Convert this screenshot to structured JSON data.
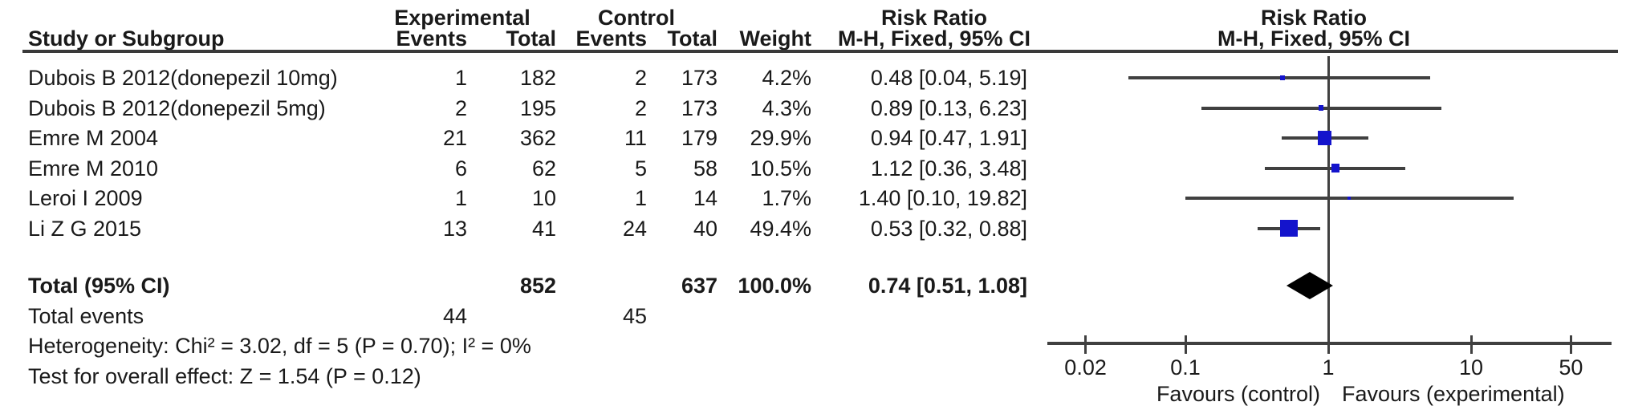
{
  "header": {
    "group1": "Experimental",
    "group2": "Control",
    "study": "Study or Subgroup",
    "events1": "Events",
    "total1": "Total",
    "events2": "Events",
    "total2": "Total",
    "weight": "Weight",
    "rr1": "Risk Ratio",
    "method1": "M-H, Fixed, 95% CI",
    "rr2": "Risk Ratio",
    "method2": "M-H, Fixed, 95% CI"
  },
  "colors": {
    "square": "#1414cc",
    "diamond": "#000000",
    "line": "#404040",
    "rule": "#3a3a3a",
    "text": "#1a1a1a"
  },
  "chart_data": {
    "type": "forest",
    "effect_measure": "Risk Ratio",
    "method": "M-H, Fixed, 95% CI",
    "scale": "log10",
    "x_ticks": [
      0.02,
      0.1,
      1,
      10,
      50
    ],
    "x_tick_labels": [
      "0.02",
      "0.1",
      "1",
      "10",
      "50"
    ],
    "x_range": [
      0.011,
      95
    ],
    "null_line": 1,
    "favours_left": "Favours (control)",
    "favours_right": "Favours (experimental)",
    "studies": [
      {
        "label": "Dubois B 2012(donepezil 10mg)",
        "exp_events": "1",
        "exp_total": "182",
        "ctl_events": "2",
        "ctl_total": "173",
        "weight": "4.2%",
        "rr": 0.48,
        "ci_low": 0.04,
        "ci_high": 5.19,
        "ci_text": "0.48 [0.04, 5.19]"
      },
      {
        "label": "Dubois B 2012(donepezil 5mg)",
        "exp_events": "2",
        "exp_total": "195",
        "ctl_events": "2",
        "ctl_total": "173",
        "weight": "4.3%",
        "rr": 0.89,
        "ci_low": 0.13,
        "ci_high": 6.23,
        "ci_text": "0.89 [0.13, 6.23]"
      },
      {
        "label": "Emre M 2004",
        "exp_events": "21",
        "exp_total": "362",
        "ctl_events": "11",
        "ctl_total": "179",
        "weight": "29.9%",
        "rr": 0.94,
        "ci_low": 0.47,
        "ci_high": 1.91,
        "ci_text": "0.94 [0.47, 1.91]"
      },
      {
        "label": "Emre M 2010",
        "exp_events": "6",
        "exp_total": "62",
        "ctl_events": "5",
        "ctl_total": "58",
        "weight": "10.5%",
        "rr": 1.12,
        "ci_low": 0.36,
        "ci_high": 3.48,
        "ci_text": "1.12 [0.36, 3.48]"
      },
      {
        "label": "Leroi I 2009",
        "exp_events": "1",
        "exp_total": "10",
        "ctl_events": "1",
        "ctl_total": "14",
        "weight": "1.7%",
        "rr": 1.4,
        "ci_low": 0.1,
        "ci_high": 19.82,
        "ci_text": "1.40 [0.10, 19.82]"
      },
      {
        "label": "Li Z G 2015",
        "exp_events": "13",
        "exp_total": "41",
        "ctl_events": "24",
        "ctl_total": "40",
        "weight": "49.4%",
        "rr": 0.53,
        "ci_low": 0.32,
        "ci_high": 0.88,
        "ci_text": "0.53 [0.32, 0.88]"
      }
    ],
    "total": {
      "label": "Total (95% CI)",
      "exp_total": "852",
      "ctl_total": "637",
      "weight": "100.0%",
      "rr": 0.74,
      "ci_low": 0.51,
      "ci_high": 1.08,
      "ci_text": "0.74 [0.51, 1.08]"
    },
    "total_events": {
      "label": "Total events",
      "experimental": "44",
      "control": "45"
    },
    "heterogeneity": "Heterogeneity: Chi² = 3.02, df = 5 (P = 0.70); I² = 0%",
    "overall_effect": "Test for overall effect: Z = 1.54 (P = 0.12)"
  }
}
